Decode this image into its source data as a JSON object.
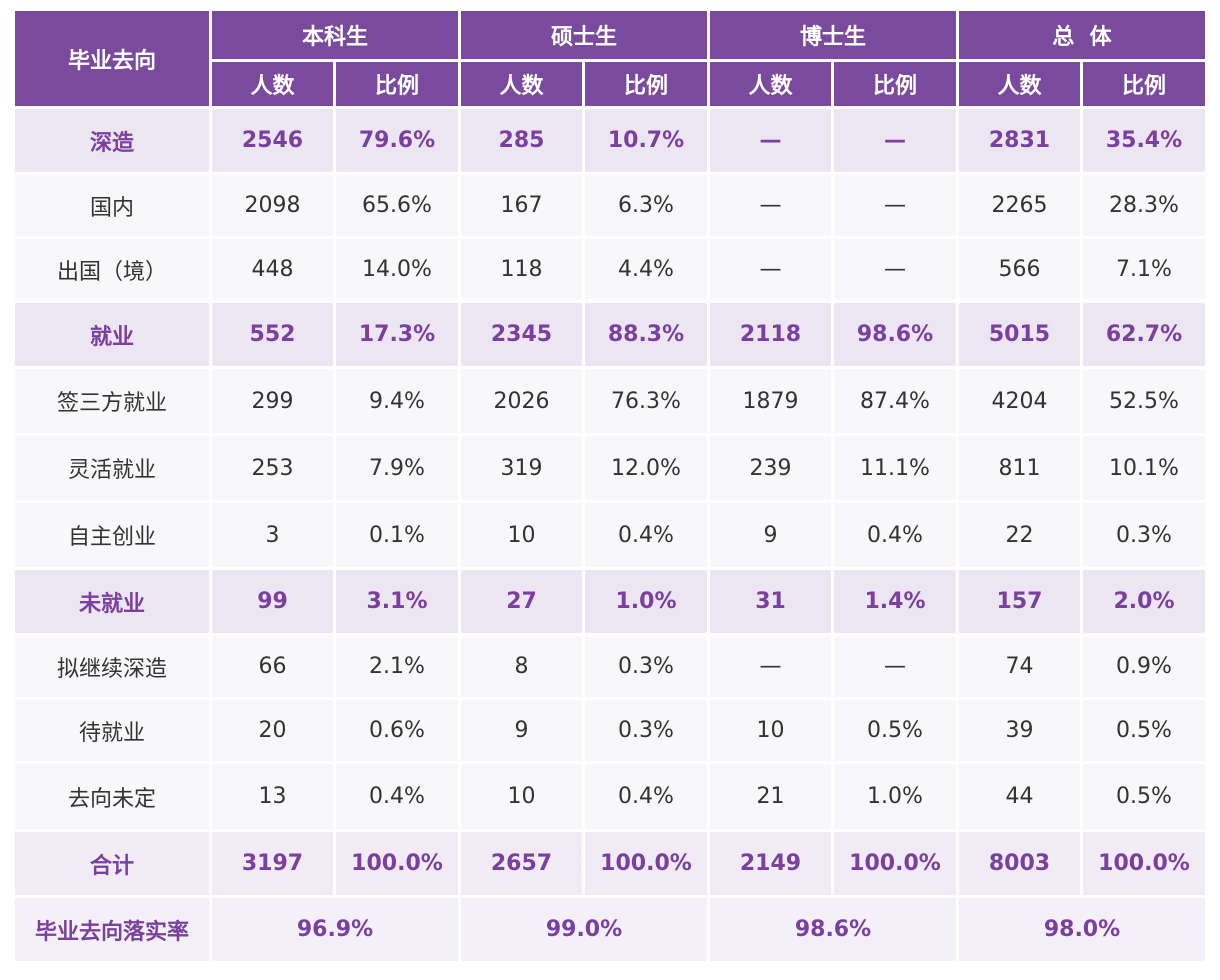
{
  "header": {
    "destination": "毕业去向",
    "groups": [
      "本科生",
      "硕士生",
      "博士生",
      "总  体"
    ],
    "count": "人数",
    "ratio": "比例"
  },
  "rows": [
    {
      "type": "cat",
      "label": "深造",
      "cells": [
        "2546",
        "79.6%",
        "285",
        "10.7%",
        "—",
        "—",
        "2831",
        "35.4%"
      ]
    },
    {
      "type": "sub",
      "label": "国内",
      "cells": [
        "2098",
        "65.6%",
        "167",
        "6.3%",
        "—",
        "—",
        "2265",
        "28.3%"
      ]
    },
    {
      "type": "sub",
      "label": "出国（境）",
      "cells": [
        "448",
        "14.0%",
        "118",
        "4.4%",
        "—",
        "—",
        "566",
        "7.1%"
      ]
    },
    {
      "type": "cat",
      "label": "就业",
      "cells": [
        "552",
        "17.3%",
        "2345",
        "88.3%",
        "2118",
        "98.6%",
        "5015",
        "62.7%"
      ]
    },
    {
      "type": "sub",
      "label": "签三方就业",
      "cells": [
        "299",
        "9.4%",
        "2026",
        "76.3%",
        "1879",
        "87.4%",
        "4204",
        "52.5%"
      ]
    },
    {
      "type": "sub",
      "label": "灵活就业",
      "cells": [
        "253",
        "7.9%",
        "319",
        "12.0%",
        "239",
        "11.1%",
        "811",
        "10.1%"
      ]
    },
    {
      "type": "sub",
      "label": "自主创业",
      "cells": [
        "3",
        "0.1%",
        "10",
        "0.4%",
        "9",
        "0.4%",
        "22",
        "0.3%"
      ]
    },
    {
      "type": "cat",
      "label": "未就业",
      "cells": [
        "99",
        "3.1%",
        "27",
        "1.0%",
        "31",
        "1.4%",
        "157",
        "2.0%"
      ]
    },
    {
      "type": "sub",
      "label": "拟继续深造",
      "cells": [
        "66",
        "2.1%",
        "8",
        "0.3%",
        "—",
        "—",
        "74",
        "0.9%"
      ]
    },
    {
      "type": "sub",
      "label": "待就业",
      "cells": [
        "20",
        "0.6%",
        "9",
        "0.3%",
        "10",
        "0.5%",
        "39",
        "0.5%"
      ]
    },
    {
      "type": "sub",
      "label": "去向未定",
      "cells": [
        "13",
        "0.4%",
        "10",
        "0.4%",
        "21",
        "1.0%",
        "44",
        "0.5%"
      ]
    },
    {
      "type": "total",
      "label": "合计",
      "cells": [
        "3197",
        "100.0%",
        "2657",
        "100.0%",
        "2149",
        "100.0%",
        "8003",
        "100.0%"
      ]
    }
  ],
  "rate": {
    "label": "毕业去向落实率",
    "values": [
      "96.9%",
      "99.0%",
      "98.6%",
      "98.0%"
    ]
  },
  "colors": {
    "header_bg": "#7a4a9e",
    "category_text": "#7a3f9f",
    "category_bg": "#ece6f2",
    "sub_bg": "#f8f7f9"
  }
}
